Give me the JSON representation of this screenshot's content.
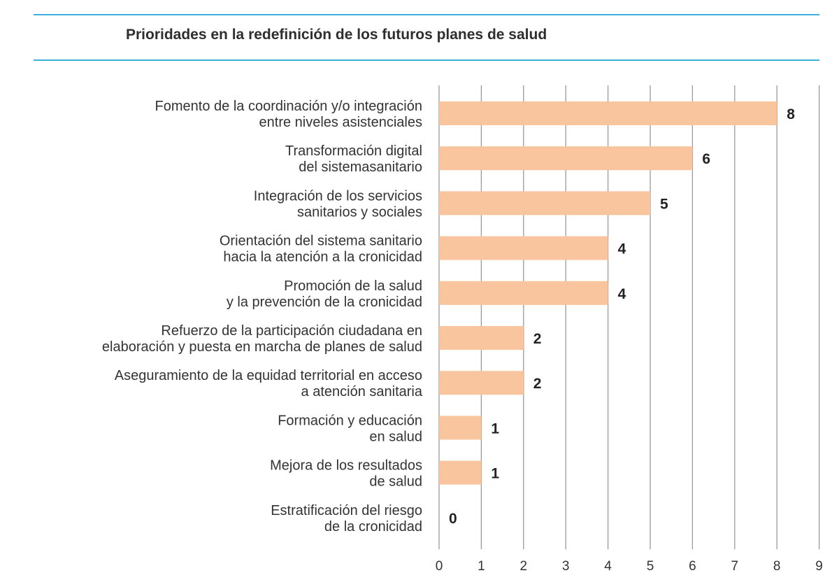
{
  "chart_data": {
    "type": "bar",
    "orientation": "horizontal",
    "title": "Prioridades en la redefinición de los futuros planes de salud",
    "categories": [
      [
        "Fomento de la coordinación y/o integración",
        "entre niveles asistenciales"
      ],
      [
        "Transformación digital",
        "del sistemasanitario"
      ],
      [
        "Integración de los servicios",
        "sanitarios y sociales"
      ],
      [
        "Orientación del sistema sanitario",
        "hacia la atención a la cronicidad"
      ],
      [
        "Promoción de la salud",
        "y la prevención de la cronicidad"
      ],
      [
        "Refuerzo de la participación ciudadana en",
        "elaboración y puesta en marcha de planes de salud"
      ],
      [
        "Aseguramiento de la equidad territorial en acceso",
        "a atención sanitaria"
      ],
      [
        "Formación y educación",
        "en salud"
      ],
      [
        "Mejora de los resultados",
        "de salud"
      ],
      [
        "Estratificación del riesgo",
        "de la cronicidad"
      ]
    ],
    "values": [
      8,
      6,
      5,
      4,
      4,
      2,
      2,
      1,
      1,
      0
    ],
    "xlim": [
      0,
      9
    ],
    "xticks": [
      0,
      1,
      2,
      3,
      4,
      5,
      6,
      7,
      8,
      9
    ],
    "grid": "vertical",
    "data_labels": true,
    "bar_color": "#f9c59e",
    "accent_color": "#3fb1df"
  }
}
